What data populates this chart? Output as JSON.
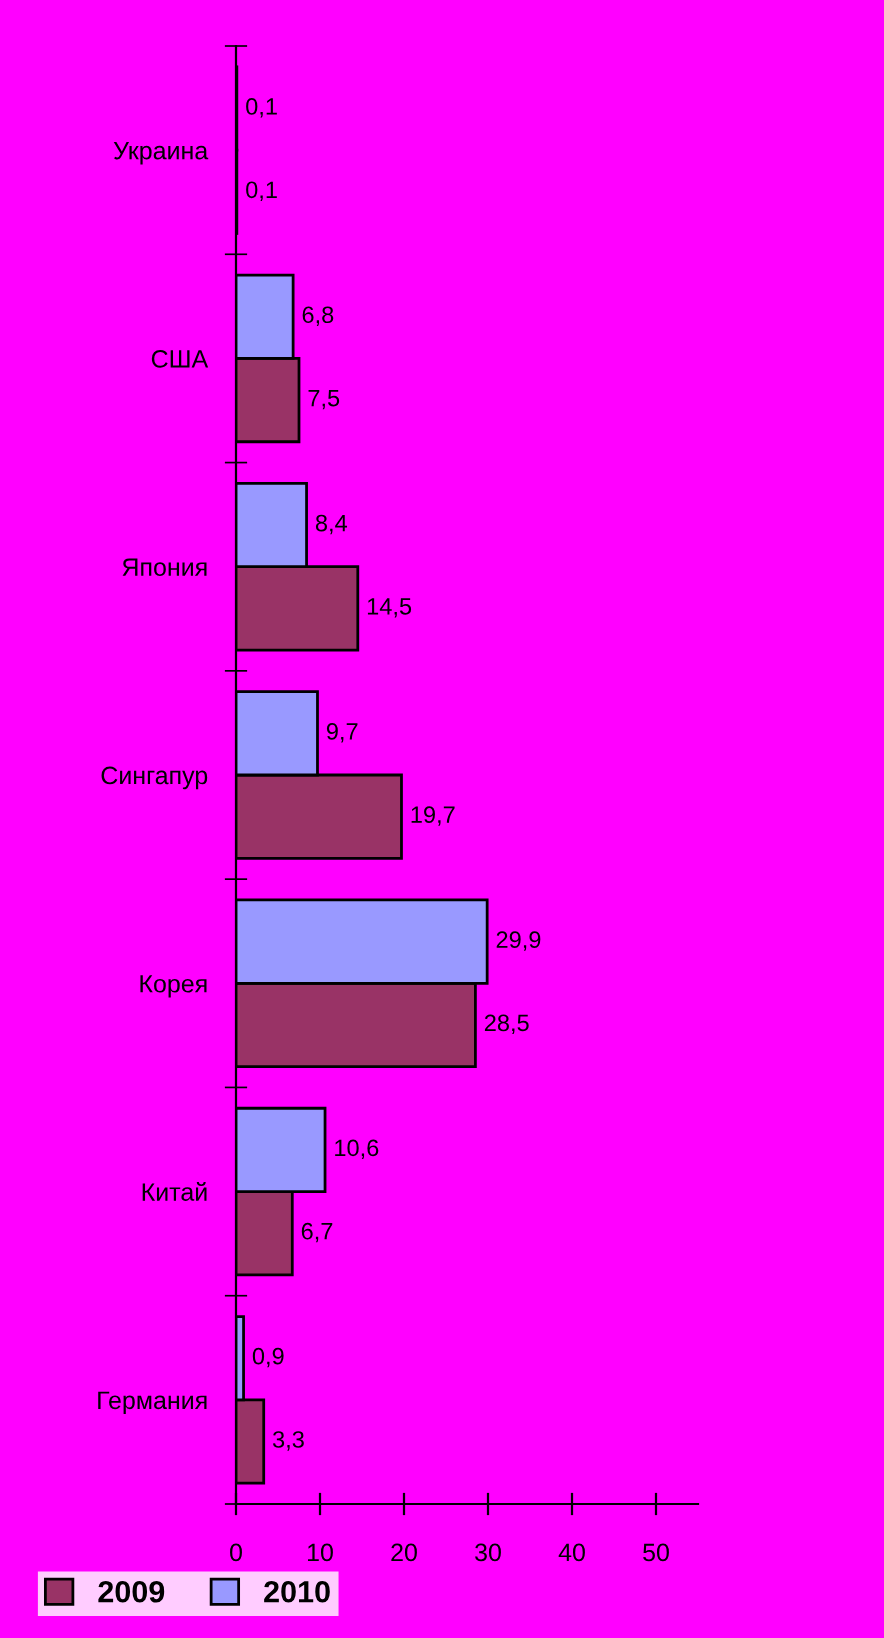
{
  "chart_data": {
    "type": "bar",
    "orientation": "horizontal",
    "categories": [
      "Украина",
      "США",
      "Япония",
      "Сингапур",
      "Корея",
      "Китай",
      "Германия"
    ],
    "series": [
      {
        "name": "2009",
        "color": "#993366",
        "values": [
          0.1,
          7.5,
          14.5,
          19.7,
          28.5,
          6.7,
          3.3
        ],
        "value_labels": [
          "0,1",
          "7,5",
          "14,5",
          "19,7",
          "28,5",
          "6,7",
          "3,3"
        ]
      },
      {
        "name": "2010",
        "color": "#9999ff",
        "values": [
          0.1,
          6.8,
          8.4,
          9.7,
          29.9,
          10.6,
          0.9
        ],
        "value_labels": [
          "0,1",
          "6,8",
          "8,4",
          "9,7",
          "29,9",
          "10,6",
          "0,9"
        ]
      }
    ],
    "xlim": [
      0,
      55
    ],
    "xticks": [
      0,
      10,
      20,
      30,
      40,
      50
    ],
    "grid": false,
    "legend": "bottom left"
  }
}
